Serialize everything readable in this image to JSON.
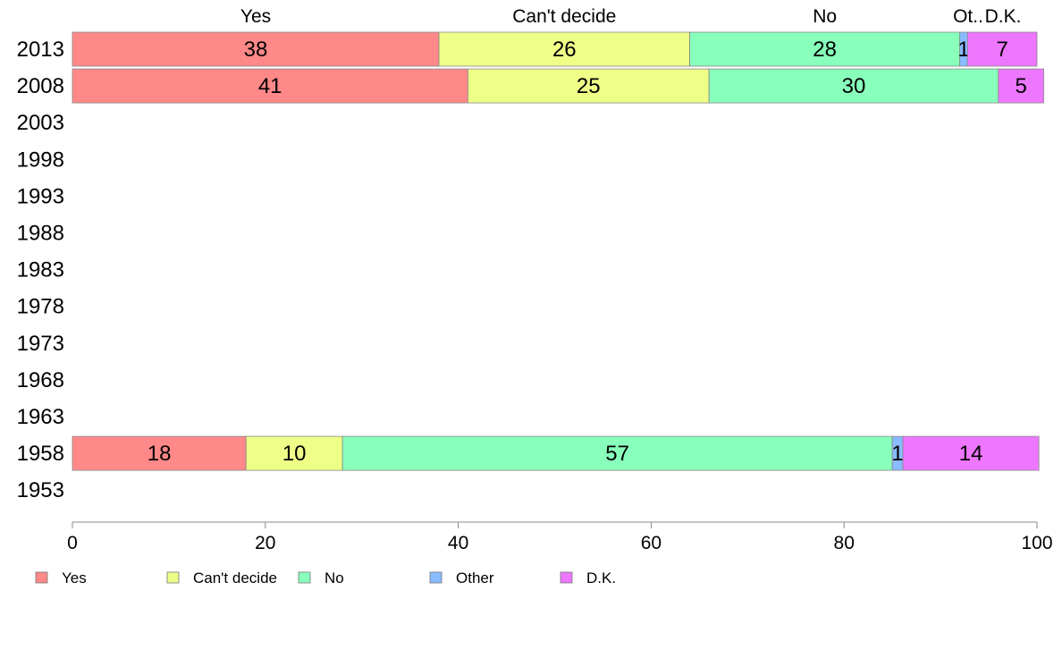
{
  "chart_data": {
    "type": "bar",
    "orientation": "horizontal",
    "stacked": true,
    "categories": [
      "2013",
      "2008",
      "2003",
      "1998",
      "1993",
      "1988",
      "1983",
      "1978",
      "1973",
      "1968",
      "1963",
      "1958",
      "1953"
    ],
    "series": [
      {
        "name": "Yes",
        "color": "#ff8888",
        "values": [
          38,
          41,
          null,
          null,
          null,
          null,
          null,
          null,
          null,
          null,
          null,
          18,
          null
        ],
        "labels": [
          "38",
          "41",
          null,
          null,
          null,
          null,
          null,
          null,
          null,
          null,
          null,
          "18",
          null
        ]
      },
      {
        "name": "Can't decide",
        "color": "#eeff88",
        "values": [
          26,
          25,
          null,
          null,
          null,
          null,
          null,
          null,
          null,
          null,
          null,
          10,
          null
        ],
        "labels": [
          "26",
          "25",
          null,
          null,
          null,
          null,
          null,
          null,
          null,
          null,
          null,
          "10",
          null
        ]
      },
      {
        "name": "No",
        "color": "#88ffbb",
        "values": [
          28,
          30,
          null,
          null,
          null,
          null,
          null,
          null,
          null,
          null,
          null,
          57,
          null
        ],
        "labels": [
          "28",
          "30",
          null,
          null,
          null,
          null,
          null,
          null,
          null,
          null,
          null,
          "57",
          null
        ]
      },
      {
        "name": "Other",
        "color": "#88bbff",
        "values": [
          0.8,
          0,
          null,
          null,
          null,
          null,
          null,
          null,
          null,
          null,
          null,
          1.1,
          null
        ],
        "labels": [
          "1",
          null,
          null,
          null,
          null,
          null,
          null,
          null,
          null,
          null,
          null,
          "1",
          null
        ]
      },
      {
        "name": "D.K.",
        "color": "#ee77ff",
        "values": [
          7.2,
          4.7,
          null,
          null,
          null,
          null,
          null,
          null,
          null,
          null,
          null,
          14.1,
          null
        ],
        "labels": [
          "7",
          "5",
          null,
          null,
          null,
          null,
          null,
          null,
          null,
          null,
          null,
          "14",
          null
        ]
      }
    ],
    "top_labels": [
      "Yes",
      "Can't decide",
      "No",
      "Ot..",
      "D.K."
    ],
    "xlim": [
      0,
      100
    ],
    "xticks": [
      "0",
      "20",
      "40",
      "60",
      "80",
      "100"
    ],
    "grid": false,
    "legend": {
      "placement": "bottom-left",
      "entries": [
        "Yes",
        "Can't decide",
        "No",
        "Other",
        "D.K."
      ]
    }
  }
}
